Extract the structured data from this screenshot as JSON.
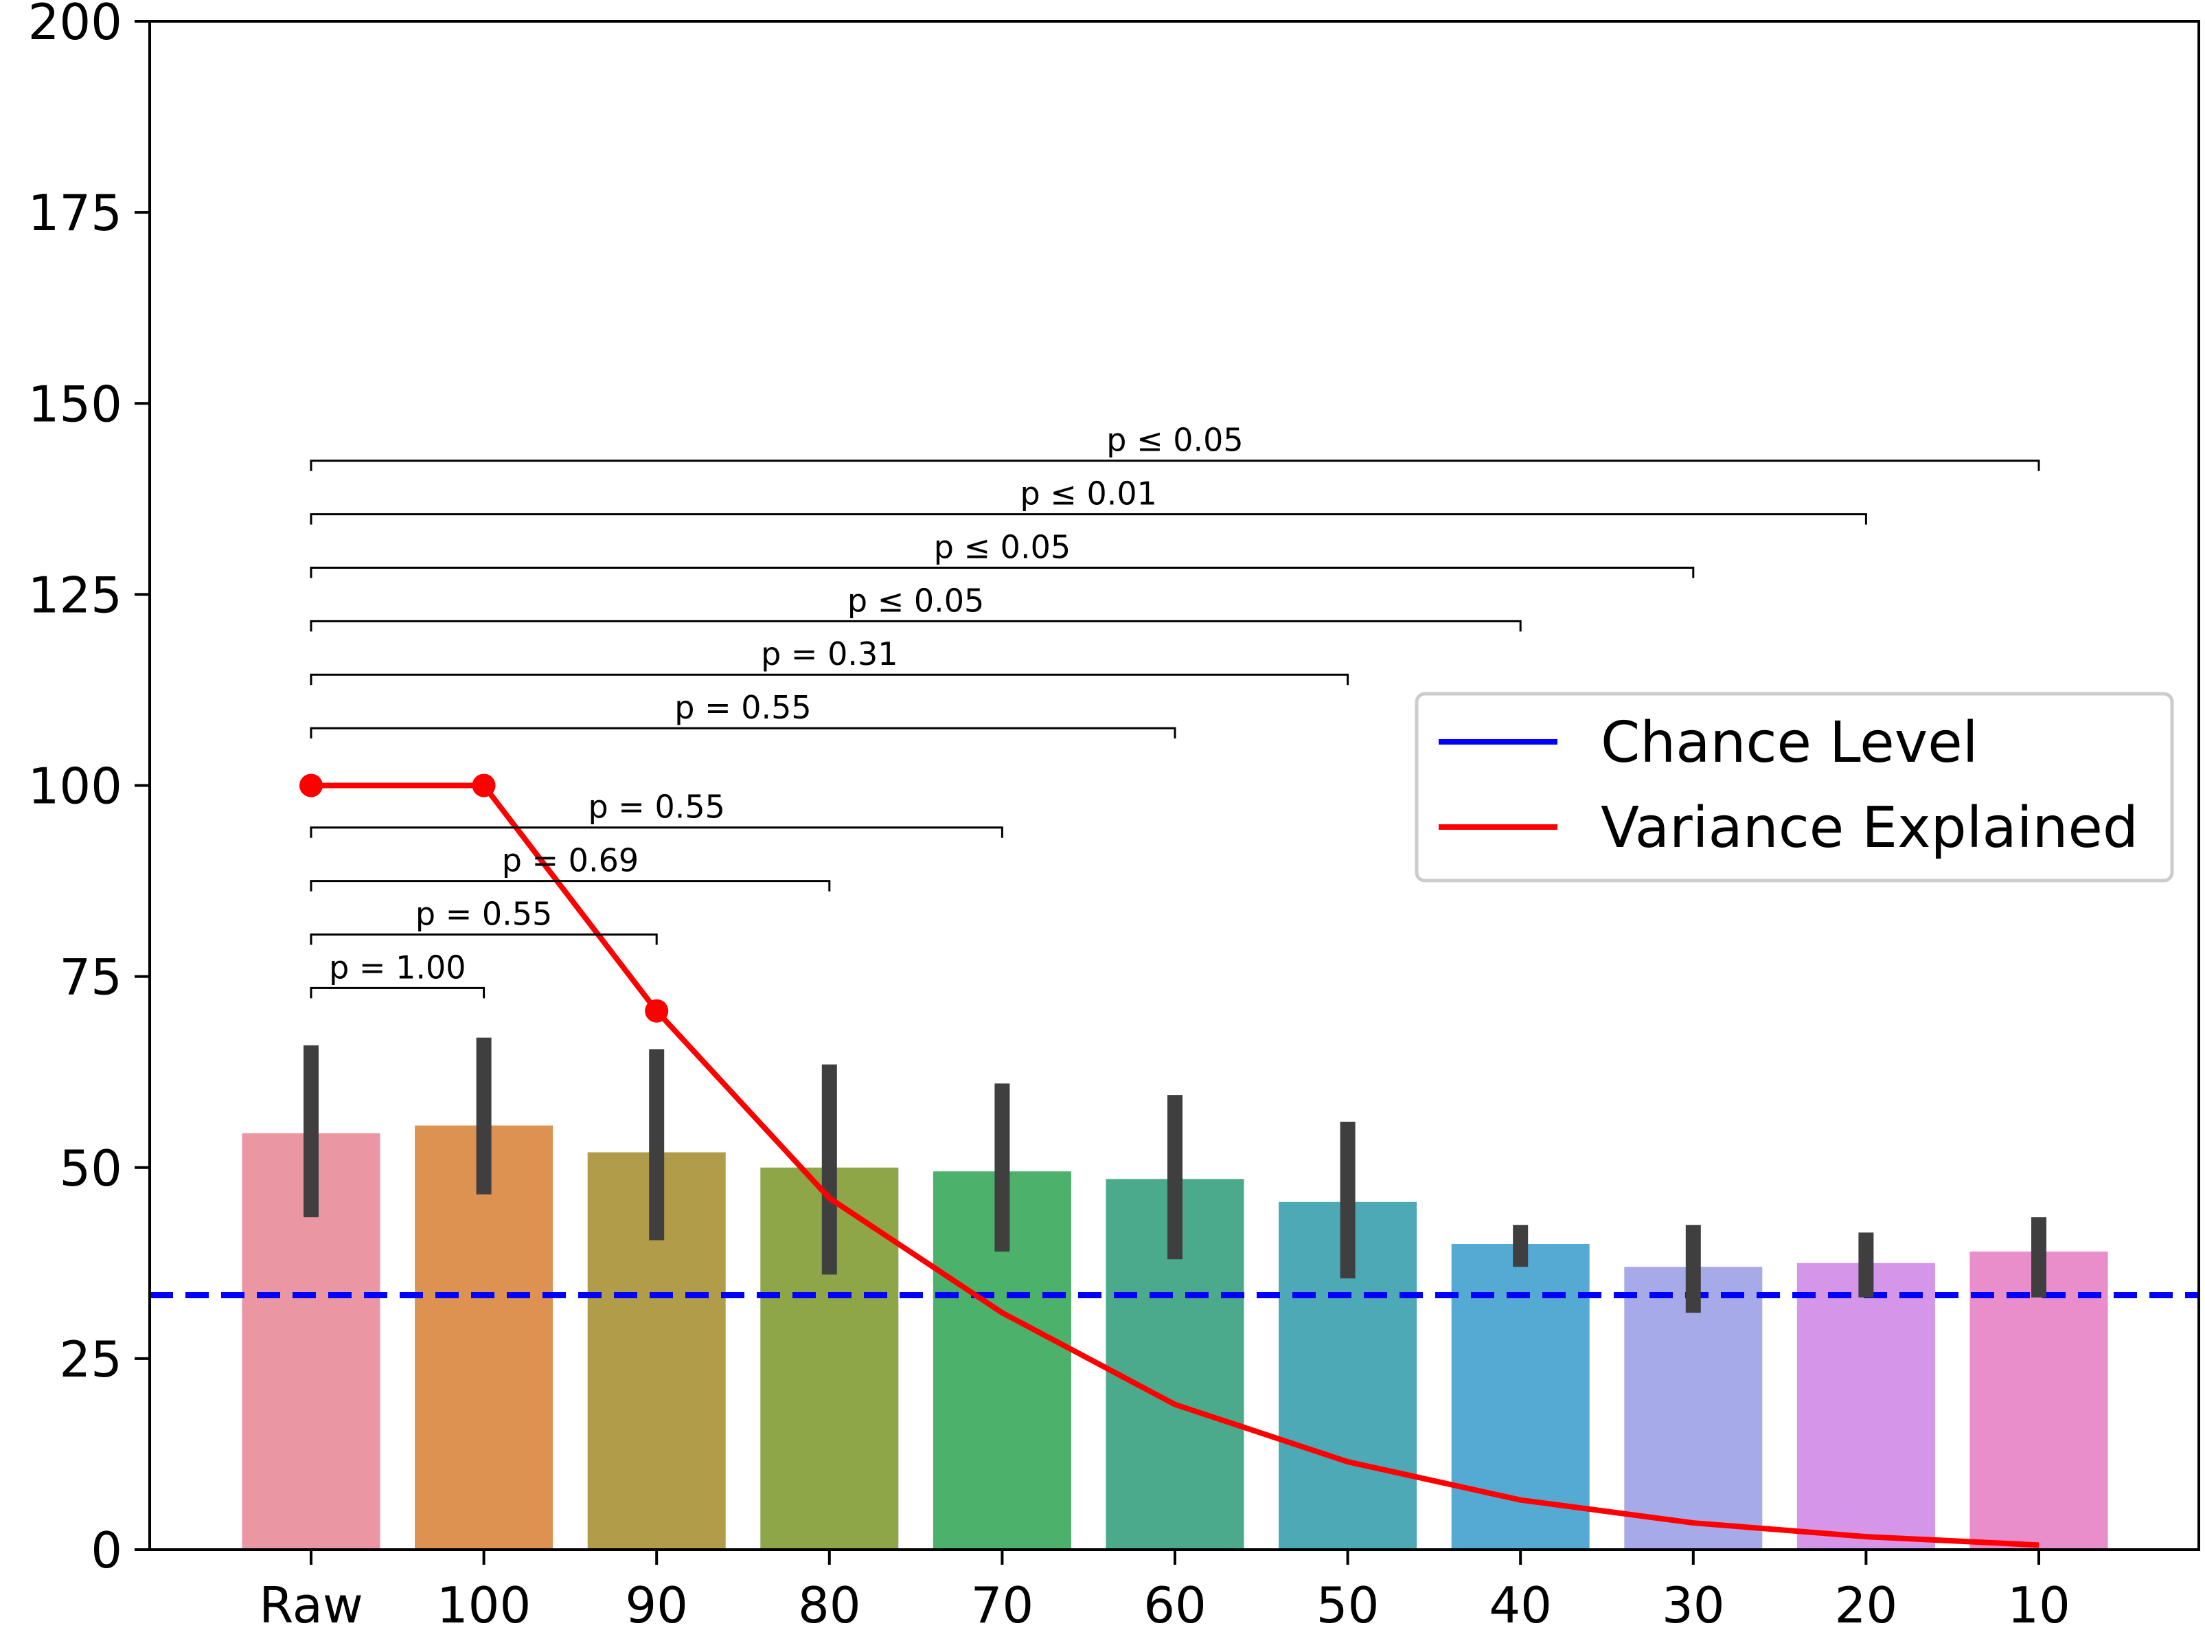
{
  "chart_data": {
    "type": "bar",
    "title": "",
    "xlabel": "",
    "ylabel": "",
    "ylim": [
      0,
      200
    ],
    "yticks": [
      0,
      25,
      50,
      75,
      100,
      125,
      150,
      175,
      200
    ],
    "categories": [
      "Raw",
      "100",
      "90",
      "80",
      "70",
      "60",
      "50",
      "40",
      "30",
      "20",
      "10"
    ],
    "values": [
      54.5,
      55.5,
      52,
      50,
      49.5,
      48.5,
      45.5,
      40,
      37,
      37.5,
      39
    ],
    "error_low": [
      43.5,
      46.5,
      40.5,
      36,
      39,
      38,
      35.5,
      37,
      31,
      33,
      33
    ],
    "error_high": [
      66,
      67,
      65.5,
      63.5,
      61,
      59.5,
      56,
      42.5,
      42.5,
      41.5,
      43.5
    ],
    "bar_colors": [
      "#ea96a3",
      "#dd9252",
      "#b19d49",
      "#8ea548",
      "#4bb16b",
      "#4baa8b",
      "#4da9b5",
      "#55aad4",
      "#a7aae8",
      "#d595e8",
      "#ea8dcb"
    ],
    "series": [
      {
        "name": "Variance Explained",
        "type": "line",
        "color": "#ff0000",
        "values": [
          100,
          100,
          70.5,
          46,
          31,
          19,
          11.5,
          6.5,
          3.5,
          1.7,
          0.6
        ],
        "marked_points": [
          0,
          1,
          2
        ]
      },
      {
        "name": "Chance Level",
        "type": "hline",
        "color": "#0000ff",
        "value": 33.3,
        "dashed": true
      }
    ],
    "legend": {
      "position": "right",
      "entries": [
        {
          "label": "Chance Level",
          "color": "#0000ff"
        },
        {
          "label": "Variance Explained",
          "color": "#ff0000"
        }
      ]
    },
    "annotations": [
      {
        "from": "Raw",
        "to": "100",
        "y": 73.5,
        "label": "p = 1.00"
      },
      {
        "from": "Raw",
        "to": "90",
        "y": 80.5,
        "label": "p = 0.55"
      },
      {
        "from": "Raw",
        "to": "80",
        "y": 87.5,
        "label": "p = 0.69"
      },
      {
        "from": "Raw",
        "to": "70",
        "y": 94.5,
        "label": "p = 0.55"
      },
      {
        "from": "Raw",
        "to": "60",
        "y": 107.5,
        "label": "p = 0.55"
      },
      {
        "from": "Raw",
        "to": "50",
        "y": 114.5,
        "label": "p = 0.31"
      },
      {
        "from": "Raw",
        "to": "40",
        "y": 121.5,
        "label": "p ≤ 0.05"
      },
      {
        "from": "Raw",
        "to": "30",
        "y": 128.5,
        "label": "p ≤ 0.05"
      },
      {
        "from": "Raw",
        "to": "20",
        "y": 135.5,
        "label": "p ≤ 0.01"
      },
      {
        "from": "Raw",
        "to": "10",
        "y": 142.5,
        "label": "p ≤ 0.05"
      }
    ],
    "grid": false
  }
}
